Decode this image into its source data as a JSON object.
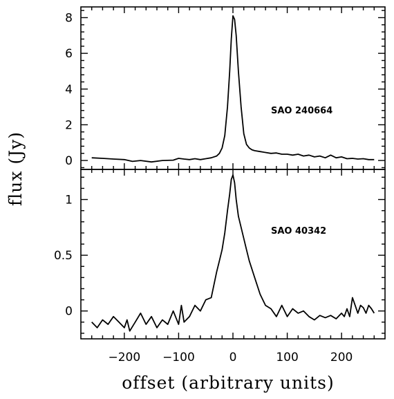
{
  "chart_data": {
    "type": "line",
    "xlabel": "offset (arbitrary units)",
    "ylabel": "flux (Jy)",
    "xlim": [
      -280,
      280
    ],
    "x_ticks": [
      -200,
      -100,
      0,
      100,
      200
    ],
    "x_tick_labels": [
      "−200",
      "−100",
      "0",
      "100",
      "200"
    ],
    "panels": [
      {
        "label": "SAO 240664",
        "ylim": [
          -0.5,
          8.6
        ],
        "y_ticks": [
          0,
          2,
          4,
          6,
          8
        ],
        "y_tick_labels": [
          "0",
          "2",
          "4",
          "6",
          "8"
        ],
        "series": [
          {
            "x": [
              -260,
              -240,
              -220,
              -200,
              -185,
              -170,
              -150,
              -130,
              -110,
              -100,
              -90,
              -80,
              -70,
              -60,
              -50,
              -40,
              -30,
              -25,
              -20,
              -15,
              -10,
              -6,
              -3,
              0,
              3,
              6,
              10,
              15,
              20,
              25,
              30,
              35,
              40,
              50,
              60,
              70,
              80,
              90,
              100,
              110,
              120,
              130,
              140,
              150,
              160,
              170,
              180,
              190,
              200,
              210,
              220,
              230,
              240,
              250,
              260
            ],
            "y": [
              0.15,
              0.12,
              0.08,
              0.05,
              -0.05,
              0.0,
              -0.08,
              0.0,
              0.02,
              0.12,
              0.08,
              0.05,
              0.1,
              0.05,
              0.1,
              0.15,
              0.25,
              0.4,
              0.7,
              1.4,
              3.0,
              5.0,
              6.8,
              8.1,
              7.9,
              7.0,
              5.0,
              3.0,
              1.5,
              0.9,
              0.7,
              0.6,
              0.55,
              0.5,
              0.45,
              0.4,
              0.42,
              0.35,
              0.35,
              0.3,
              0.35,
              0.25,
              0.3,
              0.2,
              0.25,
              0.15,
              0.3,
              0.15,
              0.2,
              0.1,
              0.12,
              0.08,
              0.1,
              0.05,
              0.05
            ]
          }
        ]
      },
      {
        "label": "SAO 40342",
        "ylim": [
          -0.25,
          1.27
        ],
        "y_ticks": [
          0,
          0.5,
          1
        ],
        "y_tick_labels": [
          "0",
          "0.5",
          "1"
        ],
        "series": [
          {
            "x": [
              -260,
              -250,
              -240,
              -230,
              -220,
              -210,
              -200,
              -195,
              -190,
              -180,
              -170,
              -160,
              -150,
              -140,
              -130,
              -120,
              -110,
              -100,
              -95,
              -90,
              -80,
              -70,
              -60,
              -50,
              -40,
              -30,
              -25,
              -20,
              -15,
              -10,
              -6,
              -3,
              0,
              3,
              6,
              10,
              15,
              20,
              25,
              30,
              40,
              50,
              60,
              70,
              80,
              90,
              100,
              110,
              120,
              130,
              140,
              150,
              160,
              170,
              180,
              190,
              200,
              205,
              210,
              215,
              220,
              225,
              230,
              235,
              240,
              245,
              250,
              255,
              260
            ],
            "y": [
              -0.1,
              -0.15,
              -0.08,
              -0.12,
              -0.05,
              -0.1,
              -0.15,
              -0.08,
              -0.18,
              -0.1,
              -0.02,
              -0.12,
              -0.05,
              -0.15,
              -0.08,
              -0.12,
              0.0,
              -0.12,
              0.05,
              -0.1,
              -0.05,
              0.05,
              0.0,
              0.1,
              0.12,
              0.35,
              0.45,
              0.55,
              0.7,
              0.9,
              1.05,
              1.18,
              1.22,
              1.15,
              1.0,
              0.85,
              0.75,
              0.65,
              0.55,
              0.45,
              0.3,
              0.15,
              0.05,
              0.02,
              -0.05,
              0.05,
              -0.05,
              0.02,
              -0.02,
              0.0,
              -0.05,
              -0.08,
              -0.04,
              -0.06,
              -0.04,
              -0.07,
              -0.02,
              -0.05,
              0.02,
              -0.05,
              0.12,
              0.05,
              -0.02,
              0.05,
              0.03,
              -0.02,
              0.05,
              0.02,
              -0.02
            ]
          }
        ]
      }
    ]
  }
}
